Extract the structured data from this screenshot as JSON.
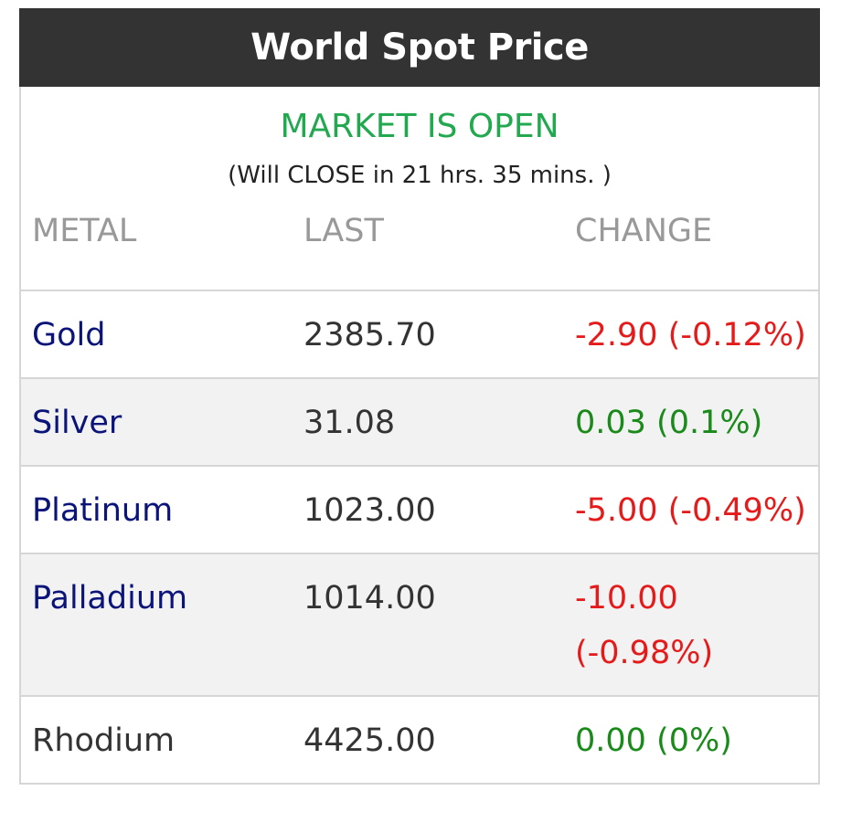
{
  "header": {
    "title": "World Spot Price"
  },
  "status": {
    "main": "MARKET IS OPEN",
    "sub": "(Will CLOSE in 21 hrs. 35 mins. )",
    "color": "#22a84f"
  },
  "table": {
    "columns": [
      "METAL",
      "LAST",
      "CHANGE"
    ],
    "rows": [
      {
        "metal": "Gold",
        "last": "2385.70",
        "change": "-2.90 (-0.12%)",
        "direction": "down"
      },
      {
        "metal": "Silver",
        "last": "31.08",
        "change": "0.03 (0.1%)",
        "direction": "up"
      },
      {
        "metal": "Platinum",
        "last": "1023.00",
        "change": "-5.00 (-0.49%)",
        "direction": "down"
      },
      {
        "metal": "Palladium",
        "last": "1014.00",
        "change_line1": "-10.00",
        "change_line2": "(-0.98%)",
        "direction": "down"
      },
      {
        "metal": "Rhodium",
        "last": "4425.00",
        "change": "0.00 (0%)",
        "direction": "flat"
      }
    ]
  },
  "colors": {
    "header_bg": "#333333",
    "link": "#0b1478",
    "negative": "#e51b1b",
    "positive": "#1a8a1a"
  }
}
